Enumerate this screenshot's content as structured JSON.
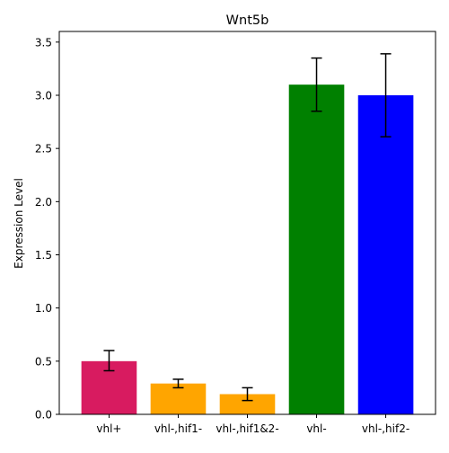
{
  "chart_data": {
    "type": "bar",
    "title": "Wnt5b",
    "xlabel": "",
    "ylabel": "Expression Level",
    "categories": [
      "vhl+",
      "vhl-,hif1-",
      "vhl-,hif1&2-",
      "vhl-",
      "vhl-,hif2-"
    ],
    "values": [
      0.5,
      0.29,
      0.19,
      3.1,
      3.0
    ],
    "error_low": [
      0.41,
      0.25,
      0.13,
      2.85,
      2.61
    ],
    "error_high": [
      0.6,
      0.33,
      0.25,
      3.35,
      3.39
    ],
    "colors": [
      "#d81b60",
      "#ffa500",
      "#ffa500",
      "#008000",
      "#0000ff"
    ],
    "ylim": [
      0,
      3.6
    ],
    "yticks": [
      0.0,
      0.5,
      1.0,
      1.5,
      2.0,
      2.5,
      3.0,
      3.5
    ],
    "ytick_labels": [
      "0.0",
      "0.5",
      "1.0",
      "1.5",
      "2.0",
      "2.5",
      "3.0",
      "3.5"
    ],
    "grid": false,
    "legend": "none"
  }
}
